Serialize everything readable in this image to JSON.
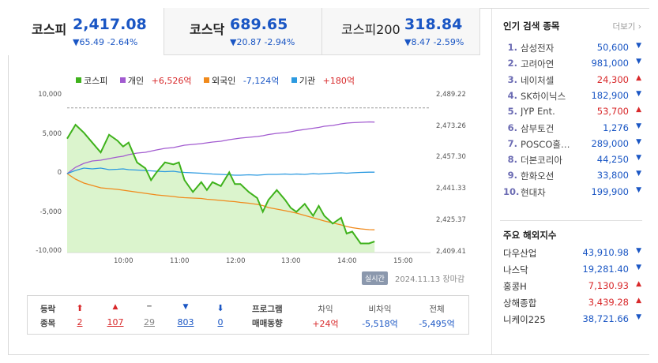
{
  "colors": {
    "up": "#d8282a",
    "down": "#1a56c4",
    "kospi": "#3fb21c",
    "individual": "#a25bd0",
    "foreign": "#f08a1c",
    "institution": "#2c9ae0"
  },
  "indices": [
    {
      "name": "코스피",
      "value": "2,417.08",
      "change": "▼65.49 -2.64%",
      "active": true
    },
    {
      "name": "코스닥",
      "value": "689.65",
      "change": "▼20.87 -2.94%",
      "active": false
    },
    {
      "name": "코스피200",
      "value": "318.84",
      "change": "▼8.47 -2.59%",
      "active": false
    }
  ],
  "legend": {
    "kospi": "코스피",
    "individual_label": "개인",
    "individual_value": "+6,526억",
    "foreign_label": "외국인",
    "foreign_value": "-7,124억",
    "institution_label": "기관",
    "institution_value": "+180억"
  },
  "chart_data": {
    "type": "line",
    "left_axis_ticks": [
      "10,000",
      "5,000",
      "0",
      "-5,000",
      "-10,000"
    ],
    "right_axis_ticks": [
      "2,489.22",
      "2,473.26",
      "2,457.30",
      "2,441.33",
      "2,425.37",
      "2,409.41"
    ],
    "x_ticks": [
      "10:00",
      "11:00",
      "12:00",
      "13:00",
      "14:00",
      "15:00"
    ],
    "ylim_left": [
      -10000,
      10000
    ],
    "ylim_right": [
      2409.41,
      2489.22
    ],
    "prev_close": 2482.57,
    "x": [
      0,
      0.15,
      0.3,
      0.45,
      0.6,
      0.75,
      0.9,
      1.0,
      1.1,
      1.25,
      1.4,
      1.5,
      1.6,
      1.75,
      1.9,
      2.0,
      2.1,
      2.25,
      2.4,
      2.5,
      2.6,
      2.75,
      2.9,
      3.0,
      3.1,
      3.25,
      3.4,
      3.5,
      3.6,
      3.75,
      3.9,
      4.0,
      4.1,
      4.25,
      4.4,
      4.5,
      4.6,
      4.75,
      4.9,
      5.0,
      5.1,
      5.25,
      5.4,
      5.5
    ],
    "series": [
      {
        "name": "코스피",
        "axis": "right",
        "values": [
          2467,
          2474,
          2470,
          2465,
          2460,
          2469,
          2466,
          2463,
          2465,
          2455,
          2452,
          2446,
          2450,
          2455,
          2454,
          2455,
          2446,
          2440,
          2445,
          2441,
          2445,
          2443,
          2450,
          2444,
          2444,
          2440,
          2437,
          2430,
          2436,
          2441,
          2436,
          2432,
          2430,
          2434,
          2428,
          2433,
          2428,
          2424,
          2427,
          2419,
          2420,
          2414,
          2414,
          2415
        ]
      },
      {
        "name": "개인",
        "axis": "left",
        "values": [
          0,
          800,
          1300,
          1600,
          1700,
          1900,
          2100,
          2200,
          2400,
          2600,
          2700,
          2850,
          3000,
          3200,
          3300,
          3450,
          3600,
          3700,
          3800,
          3900,
          4000,
          4100,
          4300,
          4400,
          4500,
          4600,
          4700,
          4800,
          4950,
          5100,
          5200,
          5300,
          5450,
          5600,
          5750,
          5850,
          6000,
          6100,
          6300,
          6400,
          6450,
          6500,
          6550,
          6526
        ]
      },
      {
        "name": "외국인",
        "axis": "left",
        "values": [
          0,
          -700,
          -1200,
          -1500,
          -1800,
          -1900,
          -2000,
          -2100,
          -2200,
          -2350,
          -2500,
          -2600,
          -2700,
          -2800,
          -2900,
          -3000,
          -3050,
          -3100,
          -3150,
          -3250,
          -3300,
          -3400,
          -3500,
          -3550,
          -3650,
          -3750,
          -3900,
          -4050,
          -4300,
          -4500,
          -4700,
          -4850,
          -5000,
          -5300,
          -5600,
          -5800,
          -6000,
          -6250,
          -6500,
          -6700,
          -6850,
          -7000,
          -7100,
          -7124
        ]
      },
      {
        "name": "기관",
        "axis": "left",
        "values": [
          0,
          400,
          700,
          600,
          700,
          500,
          550,
          600,
          500,
          450,
          400,
          350,
          300,
          250,
          300,
          200,
          150,
          100,
          50,
          0,
          -50,
          -100,
          -150,
          -200,
          -200,
          -150,
          -200,
          -150,
          -100,
          -100,
          -50,
          -100,
          -50,
          -100,
          0,
          -50,
          0,
          50,
          100,
          50,
          100,
          150,
          180,
          180
        ]
      }
    ]
  },
  "realtime_label": "실시간",
  "datetime": "2024.11.13 장마감",
  "summary": {
    "label1": "등락",
    "label2": "종목",
    "counts": [
      {
        "symbol": "⬆",
        "value": "2",
        "color": "#d8282a"
      },
      {
        "symbol": "▲",
        "value": "107",
        "color": "#d8282a"
      },
      {
        "symbol": "━",
        "value": "29",
        "color": "#888888"
      },
      {
        "symbol": "▼",
        "value": "803",
        "color": "#1a56c4"
      },
      {
        "symbol": "⬇",
        "value": "0",
        "color": "#1a56c4"
      }
    ],
    "program_label1": "프로그램",
    "program_label2": "매매동향",
    "program": [
      {
        "head": "차익",
        "value": "+24억",
        "color": "#d8282a"
      },
      {
        "head": "비차익",
        "value": "-5,518억",
        "color": "#1a56c4"
      },
      {
        "head": "전체",
        "value": "-5,495억",
        "color": "#1a56c4"
      }
    ]
  },
  "popular": {
    "title": "인기 검색 종목",
    "more": "더보기",
    "items": [
      {
        "rank": "1.",
        "name": "삼성전자",
        "price": "50,600",
        "dir": "down"
      },
      {
        "rank": "2.",
        "name": "고려아연",
        "price": "981,000",
        "dir": "down"
      },
      {
        "rank": "3.",
        "name": "네이처셀",
        "price": "24,300",
        "dir": "up"
      },
      {
        "rank": "4.",
        "name": "SK하이닉스",
        "price": "182,900",
        "dir": "down"
      },
      {
        "rank": "5.",
        "name": "JYP Ent.",
        "price": "53,700",
        "dir": "up"
      },
      {
        "rank": "6.",
        "name": "삼부토건",
        "price": "1,276",
        "dir": "down"
      },
      {
        "rank": "7.",
        "name": "POSCO홀…",
        "price": "289,000",
        "dir": "down"
      },
      {
        "rank": "8.",
        "name": "더본코리아",
        "price": "44,250",
        "dir": "down"
      },
      {
        "rank": "9.",
        "name": "한화오션",
        "price": "33,800",
        "dir": "down"
      },
      {
        "rank": "10.",
        "name": "현대차",
        "price": "199,900",
        "dir": "down"
      }
    ]
  },
  "foreign_indices": {
    "title": "주요 해외지수",
    "items": [
      {
        "name": "다우산업",
        "value": "43,910.98",
        "dir": "down"
      },
      {
        "name": "나스닥",
        "value": "19,281.40",
        "dir": "down"
      },
      {
        "name": "홍콩H",
        "value": "7,130.93",
        "dir": "up"
      },
      {
        "name": "상해종합",
        "value": "3,439.28",
        "dir": "up"
      },
      {
        "name": "니케이225",
        "value": "38,721.66",
        "dir": "down"
      }
    ]
  }
}
